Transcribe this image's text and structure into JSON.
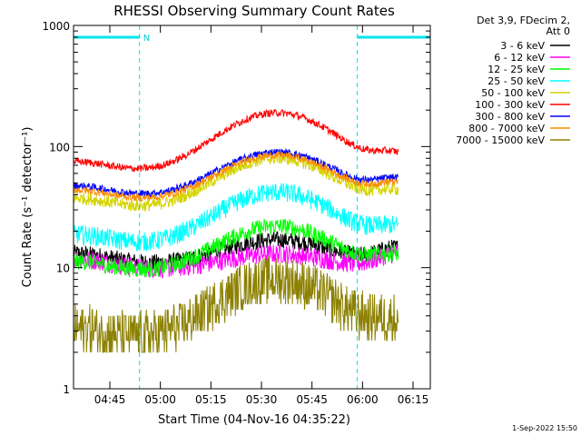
{
  "chart_data": {
    "type": "line",
    "title": "RHESSI Observing Summary Count Rates",
    "xlabel": "Start Time (04-Nov-16 04:35:22)",
    "ylabel": "Count Rate (s⁻¹ detector⁻¹)",
    "yscale": "log",
    "ylim": [
      1,
      1000
    ],
    "xlim_minutes": [
      0,
      100
    ],
    "x_ticks": [
      "04:45",
      "05:00",
      "05:15",
      "05:30",
      "05:45",
      "06:00",
      "06:15"
    ],
    "y_ticks": [
      "1",
      "10",
      "100",
      "1000"
    ],
    "header_lines": [
      "Det 3,9, FDecim 2,",
      "Att 0"
    ],
    "timestamp": "1-Sep-2022 15:50",
    "night_marker": "N",
    "series": [
      {
        "name": "3 - 6 keV",
        "color": "#000000",
        "base": 10.5,
        "peak": 17,
        "noise": 0.07
      },
      {
        "name": "6 - 12 keV",
        "color": "#ff00ff",
        "base": 9.5,
        "peak": 13,
        "noise": 0.08
      },
      {
        "name": "12 - 25 keV",
        "color": "#00ff00",
        "base": 9.0,
        "peak": 22,
        "noise": 0.07
      },
      {
        "name": "25 - 50 keV",
        "color": "#00ffff",
        "base": 15.0,
        "peak": 42,
        "noise": 0.08
      },
      {
        "name": "50 - 100 keV",
        "color": "#d4d400",
        "base": 30.0,
        "peak": 80,
        "noise": 0.05
      },
      {
        "name": "100 - 300 keV",
        "color": "#ff0000",
        "base": 60.0,
        "peak": 190,
        "noise": 0.03
      },
      {
        "name": "300 - 800 keV",
        "color": "#0000ff",
        "base": 38.0,
        "peak": 90,
        "noise": 0.03
      },
      {
        "name": "800 - 7000 keV",
        "color": "#ff8c00",
        "base": 35.0,
        "peak": 85,
        "noise": 0.03
      },
      {
        "name": "7000 - 15000 keV",
        "color": "#8b8000",
        "base": 2.5,
        "peak": 8,
        "noise": 0.2
      }
    ],
    "night_intervals_minutes": [
      [
        0,
        18.5
      ],
      [
        79.5,
        100
      ]
    ],
    "grid": false
  }
}
